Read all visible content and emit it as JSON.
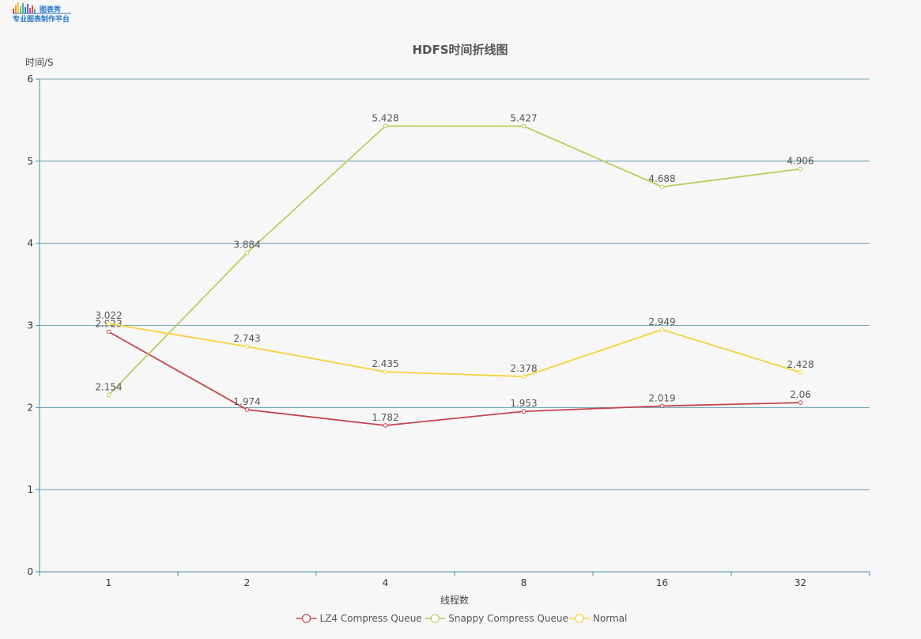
{
  "logo": {
    "brand_line1": "图表秀",
    "brand_line2": "专业图表制作平台"
  },
  "colors": {
    "axis": "#4b8da6",
    "lz4": "#c9444c",
    "snappy": "#b5cf5c",
    "normal": "#f5d23e"
  },
  "chart_data": {
    "type": "line",
    "title": "HDFS时间折线图",
    "xlabel": "线程数",
    "ylabel": "时间/S",
    "categories": [
      "1",
      "2",
      "4",
      "8",
      "16",
      "32"
    ],
    "ylim": [
      0,
      6
    ],
    "yticks": [
      "0",
      "1",
      "2",
      "3",
      "4",
      "5",
      "6"
    ],
    "grid": true,
    "legend_position": "bottom-center",
    "series": [
      {
        "name": "LZ4 Compress Queue",
        "color": "#c9444c",
        "values": [
          2.923,
          1.974,
          1.782,
          1.953,
          2.019,
          2.06
        ],
        "labels": [
          "2.923",
          "1.974",
          "1.782",
          "1.953",
          "2.019",
          "2.06"
        ]
      },
      {
        "name": "Snappy Compress Queue",
        "color": "#b5cf5c",
        "values": [
          2.154,
          3.884,
          5.428,
          5.427,
          4.688,
          4.906
        ],
        "labels": [
          "2.154",
          "3.884",
          "5.428",
          "5.427",
          "4.688",
          "4.906"
        ]
      },
      {
        "name": "Normal",
        "color": "#f5d23e",
        "values": [
          3.022,
          2.743,
          2.435,
          2.378,
          2.949,
          2.428
        ],
        "labels": [
          "3.022",
          "2.743",
          "2.435",
          "2.378",
          "2.949",
          "2.428"
        ]
      }
    ]
  }
}
